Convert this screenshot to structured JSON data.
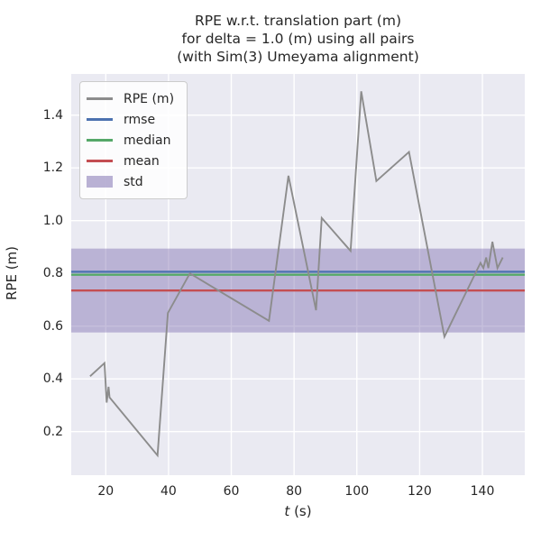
{
  "title": {
    "line1": "RPE w.r.t. translation part (m)",
    "line2": "for delta = 1.0 (m) using all pairs",
    "line3": "(with Sim(3) Umeyama alignment)"
  },
  "axes": {
    "ylabel": "RPE (m)",
    "xlabel_prefix": "t",
    "xlabel_suffix": " (s)",
    "x_ticks": [
      {
        "v": 20,
        "label": "20"
      },
      {
        "v": 40,
        "label": "40"
      },
      {
        "v": 60,
        "label": "60"
      },
      {
        "v": 80,
        "label": "80"
      },
      {
        "v": 100,
        "label": "100"
      },
      {
        "v": 120,
        "label": "120"
      },
      {
        "v": 140,
        "label": "140"
      }
    ],
    "y_ticks": [
      {
        "v": 0.2,
        "label": "0.2"
      },
      {
        "v": 0.4,
        "label": "0.4"
      },
      {
        "v": 0.6,
        "label": "0.6"
      },
      {
        "v": 0.8,
        "label": "0.8"
      },
      {
        "v": 1.0,
        "label": "1.0"
      },
      {
        "v": 1.2,
        "label": "1.2"
      },
      {
        "v": 1.4,
        "label": "1.4"
      }
    ]
  },
  "legend": {
    "items": [
      {
        "label": "RPE (m)",
        "swatch": "line",
        "color": "#8c8c8c"
      },
      {
        "label": "rmse",
        "swatch": "line",
        "color": "#4C72B0"
      },
      {
        "label": "median",
        "swatch": "line",
        "color": "#55A868"
      },
      {
        "label": "mean",
        "swatch": "line",
        "color": "#C44E52"
      },
      {
        "label": "std",
        "swatch": "patch",
        "color": "rgba(129,114,178,0.55)"
      }
    ]
  },
  "colors": {
    "plot_background": "#EAEAF2",
    "grid": "#FFFFFF",
    "rpe_line": "#8c8c8c",
    "rmse_line": "#4C72B0",
    "median_line": "#55A868",
    "mean_line": "#C44E52",
    "std_band": "rgba(129,114,178,0.45)",
    "text": "#262626"
  },
  "chart_data": {
    "type": "line",
    "title": "RPE w.r.t. translation part (m) for delta = 1.0 (m) using all pairs (with Sim(3) Umeyama alignment)",
    "xlabel": "t (s)",
    "ylabel": "RPE (m)",
    "xlim": [
      9.0,
      153.5
    ],
    "ylim": [
      0.035,
      1.556
    ],
    "grid": true,
    "legend_position": "upper left",
    "stats": {
      "rmse": 0.806,
      "median": 0.795,
      "mean": 0.735,
      "std": 0.159
    },
    "series": [
      {
        "name": "RPE (m)",
        "type": "line",
        "color": "#8c8c8c",
        "points": [
          [
            15.0,
            0.41
          ],
          [
            19.6,
            0.46
          ],
          [
            20.3,
            0.31
          ],
          [
            20.9,
            0.37
          ],
          [
            21.2,
            0.33
          ],
          [
            36.5,
            0.11
          ],
          [
            39.8,
            0.65
          ],
          [
            46.8,
            0.8
          ],
          [
            72.0,
            0.62
          ],
          [
            78.2,
            1.17
          ],
          [
            87.0,
            0.66
          ],
          [
            88.8,
            1.01
          ],
          [
            98.0,
            0.885
          ],
          [
            101.4,
            1.49
          ],
          [
            106.2,
            1.15
          ],
          [
            116.6,
            1.26
          ],
          [
            127.9,
            0.56
          ],
          [
            139.4,
            0.84
          ],
          [
            140.3,
            0.82
          ],
          [
            141.2,
            0.86
          ],
          [
            141.9,
            0.82
          ],
          [
            143.2,
            0.92
          ],
          [
            144.8,
            0.82
          ],
          [
            146.5,
            0.86
          ]
        ]
      },
      {
        "name": "rmse",
        "type": "hline",
        "color": "#4C72B0",
        "value": 0.806
      },
      {
        "name": "median",
        "type": "hline",
        "color": "#55A868",
        "value": 0.795
      },
      {
        "name": "mean",
        "type": "hline",
        "color": "#C44E52",
        "value": 0.735
      },
      {
        "name": "std",
        "type": "hband",
        "color": "rgba(129,114,178,0.45)",
        "range": [
          0.576,
          0.894
        ]
      }
    ]
  }
}
